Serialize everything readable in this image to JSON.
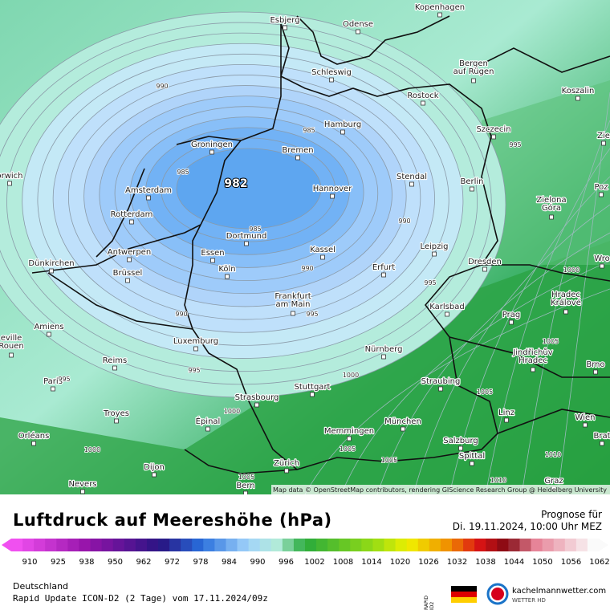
{
  "map": {
    "cities": [
      "Esbjerg",
      "Odense",
      "Kopenhagen",
      "Schleswig",
      "Bergen\nauf Rügen",
      "Rostock",
      "Koszalin",
      "Hamburg",
      "Szczecin",
      "Groningen",
      "Bremen",
      "orwich",
      "Amsterdam",
      "Hannover",
      "Stendal",
      "Berlin",
      "Poz",
      "Zielona\nGóra",
      "Rotterdam",
      "Dortmund",
      "Leipzig",
      "Antwerpen",
      "Essen",
      "Kassel",
      "Dünkirchen",
      "Erfurt",
      "Dresden",
      "Wro",
      "Brüssel",
      "Köln",
      "Frankfurt\nam Main",
      "Karlsbad",
      "Hradec\nKrálové",
      "Amiens",
      "Prag",
      "eville\nRouen",
      "Luxemburg",
      "Nürnberg",
      "Jindřichův\nHradec",
      "Brno",
      "Reims",
      "Paris",
      "Stuttgart",
      "Straubing",
      "Linz",
      "Wien",
      "Strasbourg",
      "Troyes",
      "Épinal",
      "München",
      "Memmingen",
      "Orléans",
      "Salzburg",
      "Brat",
      "Dijon",
      "Zürich",
      "Spittal",
      "Graz",
      "Nevers",
      "Bern",
      "Zie"
    ],
    "isobar_labels": [
      "990",
      "985",
      "985",
      "985",
      "990",
      "990",
      "995",
      "990",
      "995",
      "995",
      "1000",
      "1000",
      "1005",
      "1005",
      "1000",
      "995",
      "1000",
      "1005",
      "1005",
      "1010",
      "1005",
      "995",
      "1010"
    ],
    "center_label": "982",
    "attribution": "Map data © OpenStreetMap contributors, rendering GIScience Research Group @ Heidelberg University"
  },
  "header": {
    "title": "Luftdruck auf Meereshöhe (hPa)",
    "forecast_label": "Prognose für",
    "forecast_time": "Di. 19.11.2024, 10:00 Uhr MEZ"
  },
  "legend": {
    "ticks": [
      "910",
      "925",
      "938",
      "950",
      "962",
      "972",
      "978",
      "984",
      "990",
      "996",
      "1002",
      "1008",
      "1014",
      "1020",
      "1026",
      "1032",
      "1038",
      "1044",
      "1050",
      "1056",
      "1062"
    ]
  },
  "footer": {
    "region": "Deutschland",
    "model": "Rapid Update ICON-D2 (2 Tage) vom 17.11.2024/09z",
    "rapid": "RAPID ID2",
    "site": "kachelmannwetter.com",
    "tagline": "WETTER HD"
  }
}
